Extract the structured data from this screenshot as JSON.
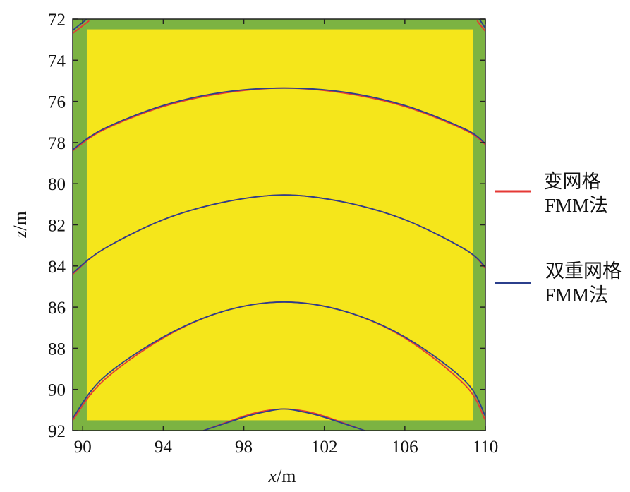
{
  "chart_data": {
    "type": "line",
    "xlabel": {
      "var": "x",
      "unit": "/m"
    },
    "ylabel": {
      "var": "z",
      "unit": "/m"
    },
    "xlim": [
      89.5,
      110
    ],
    "ylim": [
      92,
      72
    ],
    "y_inverted": true,
    "xticks": [
      "90",
      "94",
      "98",
      "102",
      "106",
      "110"
    ],
    "yticks": [
      "72",
      "74",
      "76",
      "78",
      "80",
      "82",
      "84",
      "86",
      "88",
      "90",
      "92"
    ],
    "background": {
      "outer_color": "#7cb342",
      "inner_color": "#f5e61b",
      "inner_x": [
        90.2,
        109.4
      ],
      "inner_z": [
        72.5,
        91.5
      ]
    },
    "legend": [
      {
        "lines": [
          "变网格",
          "FMM法"
        ],
        "color": "#e53935"
      },
      {
        "lines": [
          "双重网格",
          "FMM法"
        ],
        "color": "#2b3f8c"
      }
    ],
    "series": [
      {
        "color": "#e53935",
        "curves": [
          {
            "x": [
              89.5,
              91,
              94,
              97,
              100,
              103,
              106,
              109,
              110
            ],
            "z": [
              78.4,
              77.4,
              76.25,
              75.6,
              75.35,
              75.6,
              76.25,
              77.4,
              78.1
            ]
          },
          {
            "x": [
              89.5,
              91,
              94,
              97,
              100,
              103,
              106,
              109,
              110
            ],
            "z": [
              84.4,
              83.2,
              81.75,
              80.9,
              80.55,
              80.9,
              81.75,
              83.2,
              84.1
            ]
          },
          {
            "x": [
              89.5,
              91,
              94,
              97,
              100,
              103,
              106,
              109,
              110
            ],
            "z": [
              91.5,
              89.6,
              87.5,
              86.2,
              85.75,
              86.2,
              87.5,
              89.8,
              91.5
            ]
          },
          {
            "x": [
              96,
              98,
              99,
              100,
              101,
              102,
              104
            ],
            "z": [
              92,
              91.3,
              91.05,
              90.95,
              91.05,
              91.3,
              92
            ]
          },
          {
            "x": [
              89.5,
              90.3
            ],
            "z": [
              72.7,
              72.1
            ]
          },
          {
            "x": [
              109.6,
              110
            ],
            "z": [
              72.1,
              72.6
            ]
          }
        ]
      },
      {
        "color": "#2b3f8c",
        "curves": [
          {
            "x": [
              89.5,
              91,
              94,
              97,
              100,
              103,
              106,
              109,
              110
            ],
            "z": [
              78.35,
              77.35,
              76.2,
              75.55,
              75.35,
              75.55,
              76.2,
              77.35,
              78.05
            ]
          },
          {
            "x": [
              89.5,
              91,
              94,
              97,
              100,
              103,
              106,
              109,
              110
            ],
            "z": [
              84.35,
              83.2,
              81.75,
              80.9,
              80.55,
              80.9,
              81.75,
              83.2,
              84.05
            ]
          },
          {
            "x": [
              89.5,
              91,
              94,
              97,
              100,
              103,
              106,
              109,
              110
            ],
            "z": [
              91.4,
              89.45,
              87.45,
              86.2,
              85.75,
              86.2,
              87.45,
              89.6,
              91.3
            ]
          },
          {
            "x": [
              96,
              98,
              99,
              100,
              101,
              102,
              104
            ],
            "z": [
              92,
              91.35,
              91.1,
              90.95,
              91.1,
              91.35,
              92
            ]
          },
          {
            "x": [
              89.5,
              90.2
            ],
            "z": [
              72.55,
              72.0
            ]
          },
          {
            "x": [
              109.7,
              110
            ],
            "z": [
              72.0,
              72.45
            ]
          }
        ]
      }
    ]
  }
}
